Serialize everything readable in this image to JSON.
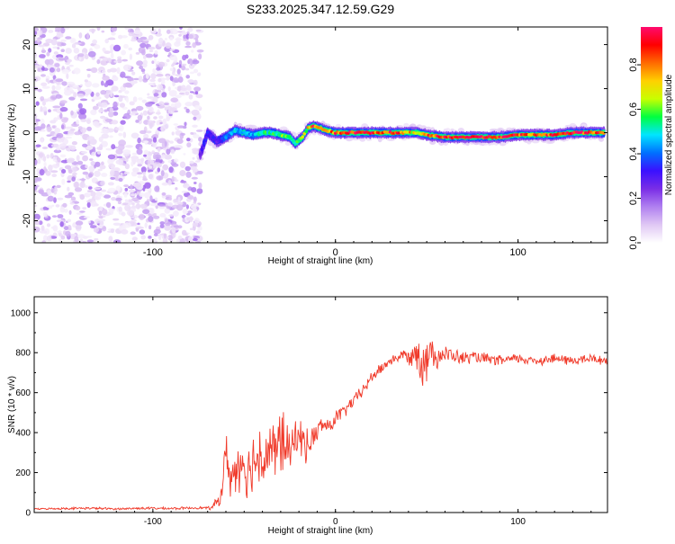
{
  "title": "S233.2025.347.12.59.G29",
  "chart_data": [
    {
      "type": "heatmap",
      "title": "S233.2025.347.12.59.G29",
      "xlabel": "Height of straight line (km)",
      "ylabel": "Frequency (Hz)",
      "xlim": [
        -165,
        149
      ],
      "ylim": [
        -25,
        24
      ],
      "xticks": [
        "-100",
        "0",
        "100"
      ],
      "yticks": [
        "-20",
        "-10",
        "0",
        "10",
        "20"
      ],
      "colorbar": {
        "label": "Normalized spectral amplitude",
        "range": [
          0,
          0.97
        ],
        "ticks": [
          "0.0",
          "0.2",
          "0.4",
          "0.6",
          "0.8"
        ],
        "colors": [
          "#ffffff",
          "#e0c8f4",
          "#b080f0",
          "#7a2ee6",
          "#3a10ff",
          "#0070ff",
          "#00e5ff",
          "#00ff40",
          "#c8ff00",
          "#ffd000",
          "#ff6a00",
          "#ff0000",
          "#ff0a6e"
        ]
      },
      "noise_region": {
        "x": [
          -165,
          -74
        ],
        "y": [
          -25,
          24
        ]
      },
      "ridge": {
        "x": [
          -74,
          -70,
          -65,
          -60,
          -55,
          -50,
          -45,
          -40,
          -35,
          -30,
          -25,
          -22,
          -18,
          -15,
          -12,
          -8,
          -5,
          0,
          10,
          20,
          30,
          40,
          45,
          50,
          60,
          70,
          80,
          90,
          100,
          110,
          120,
          130,
          140,
          147
        ],
        "frequency": [
          -5,
          0,
          -2,
          -1,
          0.5,
          0,
          -0.5,
          0,
          0,
          -0.5,
          -1,
          -2.5,
          -1,
          1,
          1.5,
          1,
          0.5,
          0,
          0,
          0,
          0,
          0,
          0,
          -0.5,
          -1,
          -1,
          -1,
          -1,
          -0.5,
          -0.5,
          -0.5,
          0,
          0,
          0
        ],
        "amplitude": [
          0.25,
          0.35,
          0.3,
          0.4,
          0.45,
          0.5,
          0.45,
          0.5,
          0.55,
          0.6,
          0.55,
          0.5,
          0.6,
          0.7,
          0.85,
          0.75,
          0.7,
          0.85,
          0.9,
          0.88,
          0.85,
          0.75,
          0.6,
          0.8,
          0.9,
          0.92,
          0.95,
          0.9,
          0.85,
          0.8,
          0.88,
          0.9,
          0.85,
          0.8
        ]
      }
    },
    {
      "type": "line",
      "xlabel": "Height of straight line (km)",
      "ylabel": "SNR (10 * v/v)",
      "xlim": [
        -165,
        149
      ],
      "ylim": [
        0,
        1080
      ],
      "xticks": [
        "-100",
        "0",
        "100"
      ],
      "yticks": [
        "0",
        "200",
        "400",
        "600",
        "800",
        "1000"
      ],
      "color": "#f03a2a",
      "series": [
        {
          "name": "SNR",
          "x": [
            -165,
            -150,
            -135,
            -120,
            -105,
            -90,
            -75,
            -68,
            -63,
            -60,
            -57,
            -54,
            -51,
            -48,
            -45,
            -42,
            -39,
            -36,
            -33,
            -30,
            -27,
            -24,
            -21,
            -18,
            -15,
            -12,
            -9,
            -6,
            -3,
            0,
            5,
            10,
            15,
            20,
            25,
            30,
            35,
            38,
            41,
            44,
            46,
            48,
            50,
            52,
            55,
            58,
            62,
            66,
            70,
            75,
            80,
            90,
            100,
            110,
            120,
            130,
            140,
            149
          ],
          "values": [
            18,
            20,
            22,
            18,
            22,
            20,
            24,
            22,
            70,
            300,
            160,
            230,
            270,
            200,
            250,
            300,
            260,
            330,
            280,
            380,
            330,
            300,
            400,
            360,
            330,
            380,
            420,
            440,
            430,
            470,
            510,
            560,
            610,
            680,
            720,
            760,
            780,
            790,
            770,
            820,
            760,
            790,
            780,
            800,
            790,
            790,
            790,
            780,
            770,
            780,
            770,
            760,
            770,
            760,
            770,
            760,
            770,
            760
          ],
          "amplitude": [
            3,
            5,
            6,
            5,
            6,
            6,
            6,
            8,
            40,
            100,
            120,
            130,
            130,
            140,
            150,
            190,
            140,
            160,
            150,
            200,
            120,
            100,
            110,
            90,
            80,
            60,
            50,
            50,
            40,
            40,
            35,
            30,
            30,
            30,
            30,
            25,
            25,
            30,
            40,
            60,
            180,
            150,
            120,
            90,
            70,
            50,
            40,
            35,
            35,
            30,
            30,
            25,
            25,
            25,
            25,
            25,
            25,
            25
          ]
        }
      ]
    }
  ]
}
